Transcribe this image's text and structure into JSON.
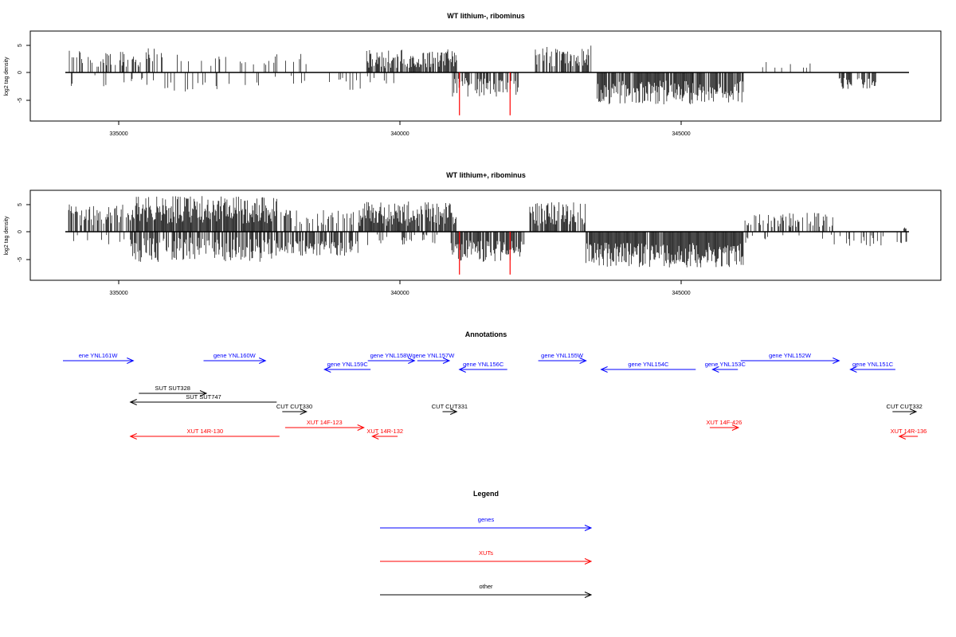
{
  "colors": {
    "gene": "#0000ff",
    "xut": "#ff0000",
    "other": "#000000",
    "highlight": "#ff0000"
  },
  "chart_data": [
    {
      "type": "bar",
      "title": "WT lithium-, ribominus",
      "ylabel": "log2 tag density",
      "xlim": [
        334000,
        349100
      ],
      "ylim": [
        -7,
        7
      ],
      "xticks": [
        "335000",
        "340000",
        "345000"
      ],
      "yticks": [
        "5",
        "0",
        "-5"
      ],
      "baseline_range": [
        334000,
        349000
      ],
      "highlight_bars": [
        {
          "x": 341050,
          "y": -7.8
        },
        {
          "x": 341950,
          "y": -7.8
        }
      ],
      "regions": [
        {
          "from": 334100,
          "to": 335800,
          "dir": "up",
          "min": 1.0,
          "max": 4.5,
          "density": 0.35
        },
        {
          "from": 334100,
          "to": 335800,
          "dir": "down",
          "min": 0.5,
          "max": 2.5,
          "density": 0.08
        },
        {
          "from": 335800,
          "to": 338400,
          "dir": "up",
          "min": 0.8,
          "max": 3.5,
          "density": 0.1
        },
        {
          "from": 335800,
          "to": 336800,
          "dir": "down",
          "min": 1.0,
          "max": 3.5,
          "density": 0.2
        },
        {
          "from": 336800,
          "to": 338400,
          "dir": "down",
          "min": 0.5,
          "max": 2.5,
          "density": 0.05
        },
        {
          "from": 338400,
          "to": 339400,
          "dir": "down",
          "min": 1.0,
          "max": 3.2,
          "density": 0.25
        },
        {
          "from": 339400,
          "to": 340100,
          "dir": "down",
          "min": 0.5,
          "max": 2.0,
          "density": 0.1
        },
        {
          "from": 339400,
          "to": 341000,
          "dir": "up",
          "min": 0.8,
          "max": 4.2,
          "density": 0.8
        },
        {
          "from": 340900,
          "to": 342100,
          "dir": "down",
          "min": 1.0,
          "max": 4.5,
          "density": 0.65
        },
        {
          "from": 342400,
          "to": 343400,
          "dir": "up",
          "min": 1.0,
          "max": 5.0,
          "density": 0.75
        },
        {
          "from": 343500,
          "to": 345200,
          "dir": "down",
          "min": 1.5,
          "max": 5.8,
          "density": 0.9
        },
        {
          "from": 345200,
          "to": 346100,
          "dir": "down",
          "min": 1.5,
          "max": 5.5,
          "density": 0.85
        },
        {
          "from": 346400,
          "to": 347500,
          "dir": "up",
          "min": 0.8,
          "max": 2.0,
          "density": 0.06
        },
        {
          "from": 347800,
          "to": 348450,
          "dir": "down",
          "min": 1.0,
          "max": 3.0,
          "density": 0.6
        }
      ]
    },
    {
      "type": "bar",
      "title": "WT lithium+, ribominus",
      "ylabel": "log2 tag density",
      "xlim": [
        334000,
        349100
      ],
      "ylim": [
        -7,
        7
      ],
      "xticks": [
        "335000",
        "340000",
        "345000"
      ],
      "yticks": [
        "5",
        "0",
        "-5"
      ],
      "baseline_range": [
        334000,
        349000
      ],
      "highlight_bars": [
        {
          "x": 341050,
          "y": -7.8
        },
        {
          "x": 341950,
          "y": -7.8
        }
      ],
      "regions": [
        {
          "from": 334100,
          "to": 335200,
          "dir": "up",
          "min": 1.0,
          "max": 5.0,
          "density": 0.55
        },
        {
          "from": 334100,
          "to": 335200,
          "dir": "down",
          "min": 0.5,
          "max": 2.5,
          "density": 0.1
        },
        {
          "from": 335200,
          "to": 337800,
          "dir": "up",
          "min": 1.5,
          "max": 6.5,
          "density": 0.95
        },
        {
          "from": 335200,
          "to": 337800,
          "dir": "down",
          "min": 1.0,
          "max": 5.5,
          "density": 0.65
        },
        {
          "from": 337800,
          "to": 339300,
          "dir": "up",
          "min": 1.0,
          "max": 4.0,
          "density": 0.35
        },
        {
          "from": 337800,
          "to": 339300,
          "dir": "down",
          "min": 1.5,
          "max": 4.5,
          "density": 0.6
        },
        {
          "from": 339300,
          "to": 341000,
          "dir": "up",
          "min": 1.0,
          "max": 5.5,
          "density": 0.9
        },
        {
          "from": 339300,
          "to": 340800,
          "dir": "down",
          "min": 0.5,
          "max": 2.5,
          "density": 0.15
        },
        {
          "from": 340900,
          "to": 342200,
          "dir": "down",
          "min": 1.5,
          "max": 5.5,
          "density": 0.85
        },
        {
          "from": 342300,
          "to": 343300,
          "dir": "up",
          "min": 1.0,
          "max": 5.5,
          "density": 0.8
        },
        {
          "from": 343300,
          "to": 346100,
          "dir": "down",
          "min": 2.0,
          "max": 6.5,
          "density": 0.95
        },
        {
          "from": 346100,
          "to": 347700,
          "dir": "up",
          "min": 0.8,
          "max": 3.5,
          "density": 0.45
        },
        {
          "from": 346100,
          "to": 347700,
          "dir": "down",
          "min": 0.5,
          "max": 2.0,
          "density": 0.08
        },
        {
          "from": 347700,
          "to": 349000,
          "dir": "down",
          "min": 0.5,
          "max": 3.0,
          "density": 0.2
        },
        {
          "from": 348950,
          "to": 349000,
          "dir": "up",
          "min": 0.5,
          "max": 0.8,
          "density": 1.0
        }
      ]
    },
    {
      "type": "annotation-track",
      "title": "Annotations",
      "xlim": [
        334000,
        349100
      ],
      "features": [
        {
          "label": "ene YNL161W",
          "class": "gene",
          "start": 334000,
          "end": 335250,
          "strand": "+",
          "row": 0
        },
        {
          "label": "gene YNL160W",
          "class": "gene",
          "start": 336500,
          "end": 337600,
          "strand": "+",
          "row": 0
        },
        {
          "label": "gene YNL159C",
          "class": "gene",
          "start": 338650,
          "end": 339470,
          "strand": "-",
          "row": 1
        },
        {
          "label": "gene YNL158W",
          "class": "gene",
          "start": 339420,
          "end": 340250,
          "strand": "+",
          "row": 0
        },
        {
          "label": "gene YNL157W",
          "class": "gene",
          "start": 340300,
          "end": 340870,
          "strand": "+",
          "row": 0
        },
        {
          "label": "gene YNL156C",
          "class": "gene",
          "start": 341050,
          "end": 341900,
          "strand": "-",
          "row": 1
        },
        {
          "label": "gene YNL155W",
          "class": "gene",
          "start": 342450,
          "end": 343300,
          "strand": "+",
          "row": 0
        },
        {
          "label": "gene YNL154C",
          "class": "gene",
          "start": 343570,
          "end": 345250,
          "strand": "-",
          "row": 1
        },
        {
          "label": "gene YNL153C",
          "class": "gene",
          "start": 345550,
          "end": 346000,
          "strand": "-",
          "row": 1
        },
        {
          "label": "gene YNL152W",
          "class": "gene",
          "start": 346050,
          "end": 347800,
          "strand": "+",
          "row": 0
        },
        {
          "label": "gene YNL151C",
          "class": "gene",
          "start": 348000,
          "end": 348800,
          "strand": "-",
          "row": 1
        },
        {
          "label": "SUT SUT328",
          "class": "other",
          "start": 335350,
          "end": 336550,
          "strand": "+",
          "row": 2
        },
        {
          "label": "SUT SUT747",
          "class": "other",
          "start": 335200,
          "end": 337800,
          "strand": "-",
          "row": 3
        },
        {
          "label": "CUT CUT330",
          "class": "other",
          "start": 337900,
          "end": 338330,
          "strand": "+",
          "row": 4
        },
        {
          "label": "CUT CUT331",
          "class": "other",
          "start": 340750,
          "end": 341000,
          "strand": "+",
          "row": 4
        },
        {
          "label": "CUT CUT332",
          "class": "other",
          "start": 348750,
          "end": 349170,
          "strand": "+",
          "row": 4
        },
        {
          "label": "XUT 14F-123",
          "class": "xut",
          "start": 337950,
          "end": 339350,
          "strand": "+",
          "row": 5
        },
        {
          "label": "XUT 14R-130",
          "class": "xut",
          "start": 335200,
          "end": 337850,
          "strand": "-",
          "row": 6
        },
        {
          "label": "XUT 14R-132",
          "class": "xut",
          "start": 339500,
          "end": 339950,
          "strand": "-",
          "row": 6
        },
        {
          "label": "XUT 14F-426",
          "class": "xut",
          "start": 345500,
          "end": 346010,
          "strand": "+",
          "row": 5
        },
        {
          "label": "XUT 14R-136",
          "class": "xut",
          "start": 348870,
          "end": 349200,
          "strand": "-",
          "row": 6
        }
      ]
    }
  ],
  "legend": {
    "title": "Legend",
    "items": [
      {
        "label": "genes",
        "class": "gene"
      },
      {
        "label": "XUTs",
        "class": "xut"
      },
      {
        "label": "other",
        "class": "other"
      }
    ]
  }
}
